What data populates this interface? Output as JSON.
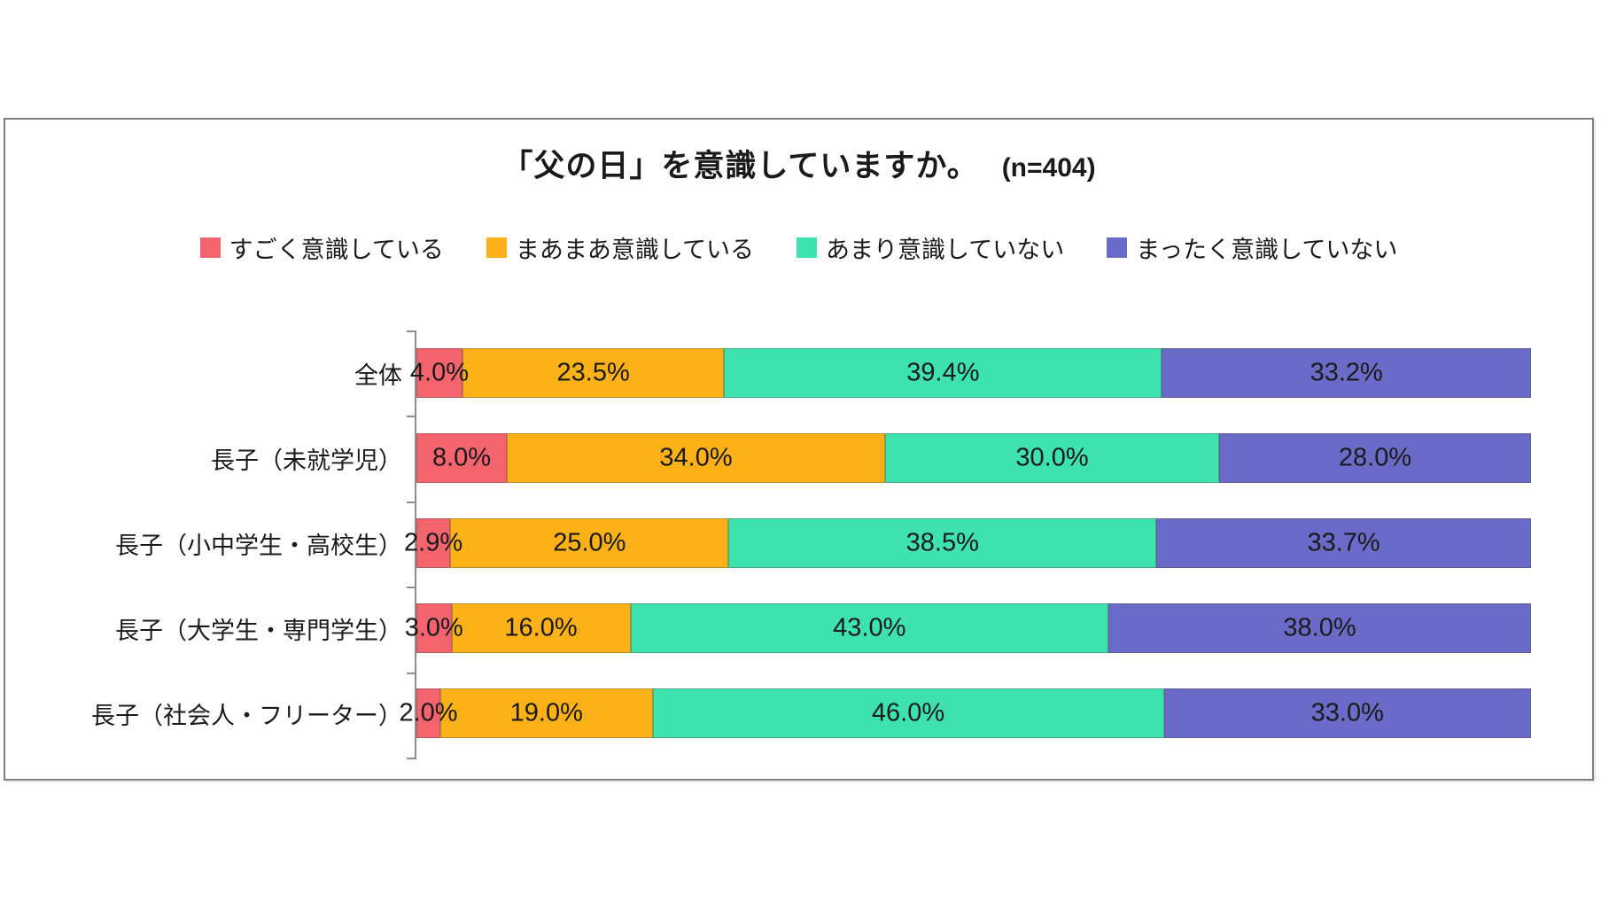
{
  "title": {
    "text": "「父の日」を意識していますか。",
    "sample_size": "(n=404)"
  },
  "colors": {
    "frame_border": "#7f7f7f",
    "axis": "#8e8e8e",
    "series": [
      "#f4646f",
      "#fbb117",
      "#3ee2ae",
      "#6a6ac8"
    ]
  },
  "chart_data": {
    "type": "bar",
    "orientation": "horizontal",
    "stacked": true,
    "title": "「父の日」を意識していますか。 (n=404)",
    "sample_size": 404,
    "legend_position": "top-center",
    "grid": false,
    "xlim": [
      0,
      100
    ],
    "value_suffix": "%",
    "data_labels": "inside-center, 1 decimal place",
    "categories": [
      "全体",
      "長子（未就学児）",
      "長子（小中学生・高校生）",
      "長子（大学生・専門学生）",
      "長子（社会人・フリーター）"
    ],
    "series": [
      {
        "name": "すごく意識している",
        "color": "#f4646f",
        "values": [
          4.0,
          8.0,
          2.9,
          3.0,
          2.0
        ]
      },
      {
        "name": "まあまあ意識している",
        "color": "#fbb117",
        "values": [
          23.5,
          34.0,
          25.0,
          16.0,
          19.0
        ]
      },
      {
        "name": "あまり意識していない",
        "color": "#3ee2ae",
        "values": [
          39.4,
          30.0,
          38.5,
          43.0,
          46.0
        ]
      },
      {
        "name": "まったく意識していない",
        "color": "#6a6ac8",
        "values": [
          33.2,
          28.0,
          33.7,
          38.0,
          33.0
        ]
      }
    ]
  }
}
